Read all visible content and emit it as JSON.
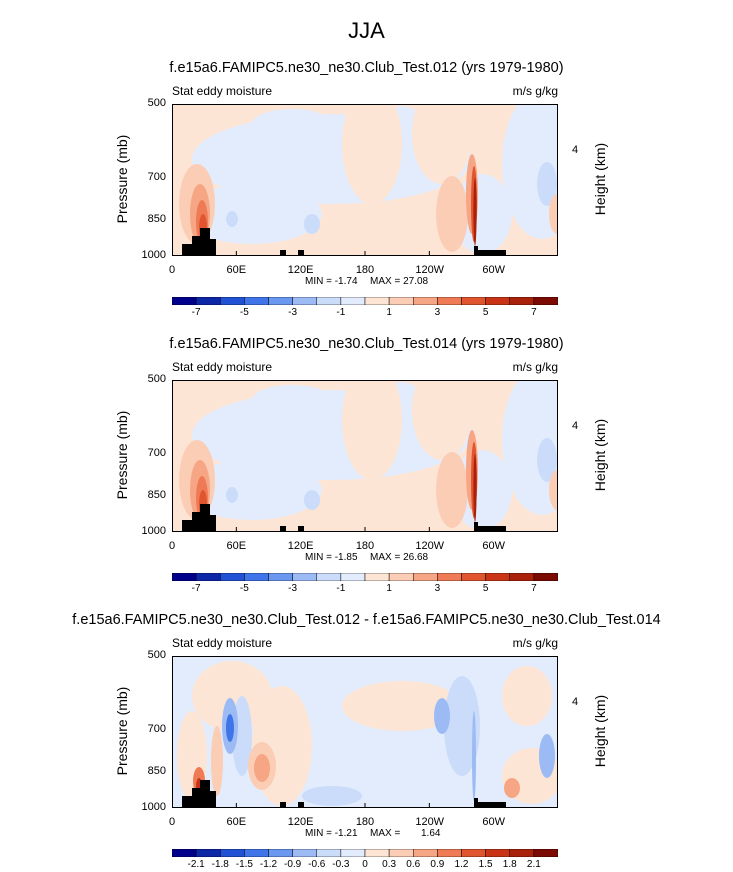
{
  "title": "JJA",
  "colors": {
    "levels_neg": [
      "#00008b",
      "#0e27a7",
      "#2151d4",
      "#3f75e8",
      "#6a97f0",
      "#9cbbf5",
      "#cbdcfa",
      "#e2ecfc"
    ],
    "levels_pos": [
      "#fde5d6",
      "#fbcdb4",
      "#f6a585",
      "#ee7b56",
      "#e0542e",
      "#c93416",
      "#a9200b",
      "#7b0a03"
    ],
    "land": "#000000"
  },
  "chart_data": [
    {
      "type": "contour",
      "title": "f.e15a6.FAMIPC5.ne30_ne30.Club_Test.012 (yrs 1979-1980)",
      "left_label": "Stat eddy moisture",
      "units": "m/s g/kg",
      "ylabel": "Pressure (mb)",
      "ylabel_right": "Height (km)",
      "xticks": [
        "0",
        "60E",
        "120E",
        "180",
        "120W",
        "60W"
      ],
      "yticks": [
        "500",
        "700",
        "850",
        "1000"
      ],
      "ytick_values": [
        500,
        700,
        850,
        1000
      ],
      "yticks_right": [
        "4"
      ],
      "colorbar_labels": [
        "-7",
        "-5",
        "-3",
        "-1",
        "1",
        "3",
        "5",
        "7"
      ],
      "min_label": "MIN = -1.74",
      "max_label": "MAX = 27.08",
      "min": -1.74,
      "max": 27.08
    },
    {
      "type": "contour",
      "title": "f.e15a6.FAMIPC5.ne30_ne30.Club_Test.014 (yrs 1979-1980)",
      "left_label": "Stat eddy moisture",
      "units": "m/s g/kg",
      "ylabel": "Pressure (mb)",
      "ylabel_right": "Height (km)",
      "xticks": [
        "0",
        "60E",
        "120E",
        "180",
        "120W",
        "60W"
      ],
      "yticks": [
        "500",
        "700",
        "850",
        "1000"
      ],
      "ytick_values": [
        500,
        700,
        850,
        1000
      ],
      "yticks_right": [
        "4"
      ],
      "colorbar_labels": [
        "-7",
        "-5",
        "-3",
        "-1",
        "1",
        "3",
        "5",
        "7"
      ],
      "min_label": "MIN = -1.85",
      "max_label": "MAX = 26.68",
      "min": -1.85,
      "max": 26.68
    },
    {
      "type": "contour",
      "title": "f.e15a6.FAMIPC5.ne30_ne30.Club_Test.012 - f.e15a6.FAMIPC5.ne30_ne30.Club_Test.014",
      "left_label": "Stat eddy moisture",
      "units": "m/s g/kg",
      "ylabel": "Pressure (mb)",
      "ylabel_right": "Height (km)",
      "xticks": [
        "0",
        "60E",
        "120E",
        "180",
        "120W",
        "60W"
      ],
      "yticks": [
        "500",
        "700",
        "850",
        "1000"
      ],
      "ytick_values": [
        500,
        700,
        850,
        1000
      ],
      "yticks_right": [
        "4"
      ],
      "colorbar_labels": [
        "-2.1",
        "-1.8",
        "-1.5",
        "-1.2",
        "-0.9",
        "-0.6",
        "-0.3",
        "0",
        "0.3",
        "0.6",
        "0.9",
        "1.2",
        "1.5",
        "1.8",
        "2.1"
      ],
      "min_label": "MIN = -1.21",
      "max_label": "MAX =",
      "max_value_label": "1.64",
      "min": -1.21,
      "max": 1.64
    }
  ]
}
